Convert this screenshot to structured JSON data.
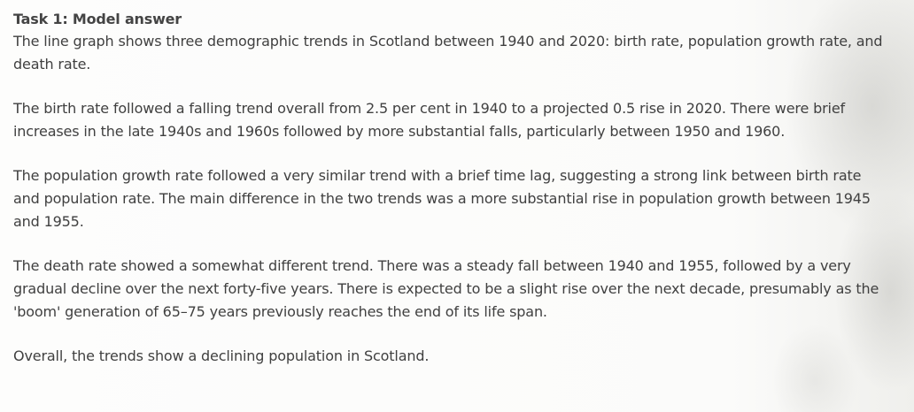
{
  "document": {
    "heading": "Task 1: Model answer",
    "paragraphs": [
      "The line graph shows three demographic trends in Scotland between 1940 and 2020: birth rate, population growth rate, and death rate.",
      "The birth rate followed a falling trend overall from 2.5 per cent in 1940 to a projected 0.5 rise in 2020. There were brief increases in the late 1940s and 1960s followed by more substantial falls, particularly between 1950 and 1960.",
      "The population growth rate followed a very similar trend with a brief time lag, suggesting a strong link between birth rate and population rate. The main difference in the two trends was a more substantial rise in population growth between 1945 and 1955.",
      "The death rate showed a somewhat different trend. There was a steady fall between 1940 and 1955, followed by a very gradual decline over the next forty-five years. There is expected to be a slight rise over the next decade, presumably as the 'boom' generation of 65–75 years previously reaches the end of its life span.",
      "Overall, the trends show a declining population in Scotland."
    ]
  }
}
